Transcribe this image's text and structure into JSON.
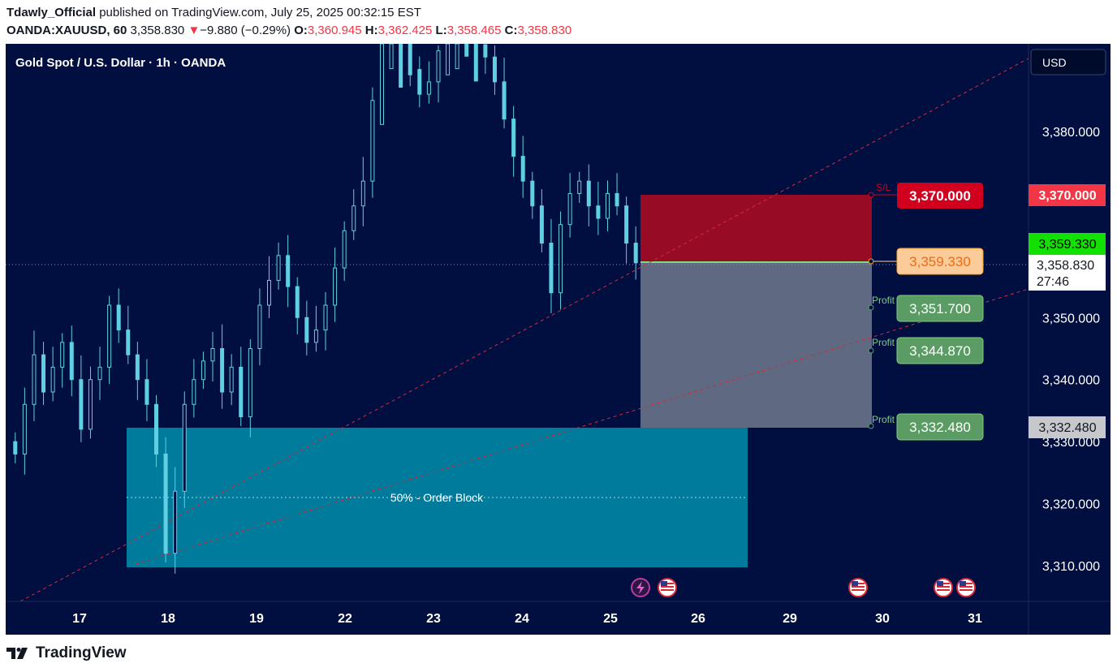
{
  "header": {
    "author": "Tdawly_Official",
    "published_text": "published on TradingView.com, July 25, 2025 00:32:15 EST",
    "symbol": "OANDA:XAUUSD, 60",
    "last": "3,358.830",
    "change_arrow": "▼",
    "change": "−9.880 (−0.29%)",
    "o_label": "O:",
    "o_value": "3,360.945",
    "h_label": "H:",
    "h_value": "3,362.425",
    "l_label": "L:",
    "l_value": "3,358.465",
    "c_label": "C:",
    "c_value": "3,358.830"
  },
  "chart_title": "Gold Spot / U.S. Dollar · 1h · OANDA",
  "currency_button": "USD",
  "colors": {
    "background": "#000f3f",
    "candle": "#5fd0e3",
    "stop_zone": "#980b24",
    "target_zone": "#5f6a82",
    "order_block": "#007b9c",
    "trendline": "#d8293a",
    "sl_label": "#d1001f",
    "entry_label": "#fccb9a",
    "tp_label": "#5a9c64",
    "current_green": "#12e000"
  },
  "chart_data": {
    "type": "candlestick",
    "ylim": [
      3302,
      3395
    ],
    "y_ticks": [
      "3,380.000",
      "3,350.000",
      "3,340.000",
      "3,330.000",
      "3,320.000",
      "3,310.000"
    ],
    "y_tick_values": [
      3380,
      3350,
      3340,
      3330,
      3320,
      3310
    ],
    "x_ticks": [
      "17",
      "18",
      "19",
      "22",
      "23",
      "24",
      "25",
      "26",
      "29",
      "30",
      "31"
    ],
    "candles_close_approx": [
      3328,
      3336,
      3344,
      3338,
      3342,
      3346,
      3340,
      3332,
      3340,
      3342,
      3352,
      3348,
      3344,
      3340,
      3336,
      3328,
      3312,
      3322,
      3336,
      3340,
      3343,
      3345,
      3338,
      3342,
      3334,
      3345,
      3352,
      3356,
      3360,
      3355,
      3350,
      3346,
      3348,
      3352,
      3358,
      3364,
      3368,
      3372,
      3385,
      3398,
      3402,
      3395,
      3390,
      3386,
      3388,
      3393,
      3398,
      3402,
      3400,
      3394,
      3392,
      3388,
      3382,
      3376,
      3372,
      3368,
      3362,
      3354,
      3365,
      3370,
      3372,
      3368,
      3366,
      3370,
      3368,
      3362,
      3358.83
    ],
    "stop_loss": "3,370.000",
    "stop_loss_label": "S/L",
    "entry": "3,359.330",
    "take_profit_1": "3,351.700",
    "take_profit_2": "3,344.870",
    "take_profit_3": "3,332.480",
    "profit_label": "Profit",
    "order_block_label": "50% - Order Block",
    "order_block_range": [
      3310,
      3332.5
    ],
    "axis_price_labels": {
      "stop": "3,370.000",
      "entry": "3,359.330",
      "current": "3,358.830",
      "countdown": "27:46",
      "target": "3,332.480"
    }
  },
  "event_icons": [
    "lightning-icon",
    "us-flag-icon",
    "us-flag-icon",
    "us-flag-icon",
    "us-flag-icon"
  ],
  "footer": {
    "brand": "TradingView"
  }
}
